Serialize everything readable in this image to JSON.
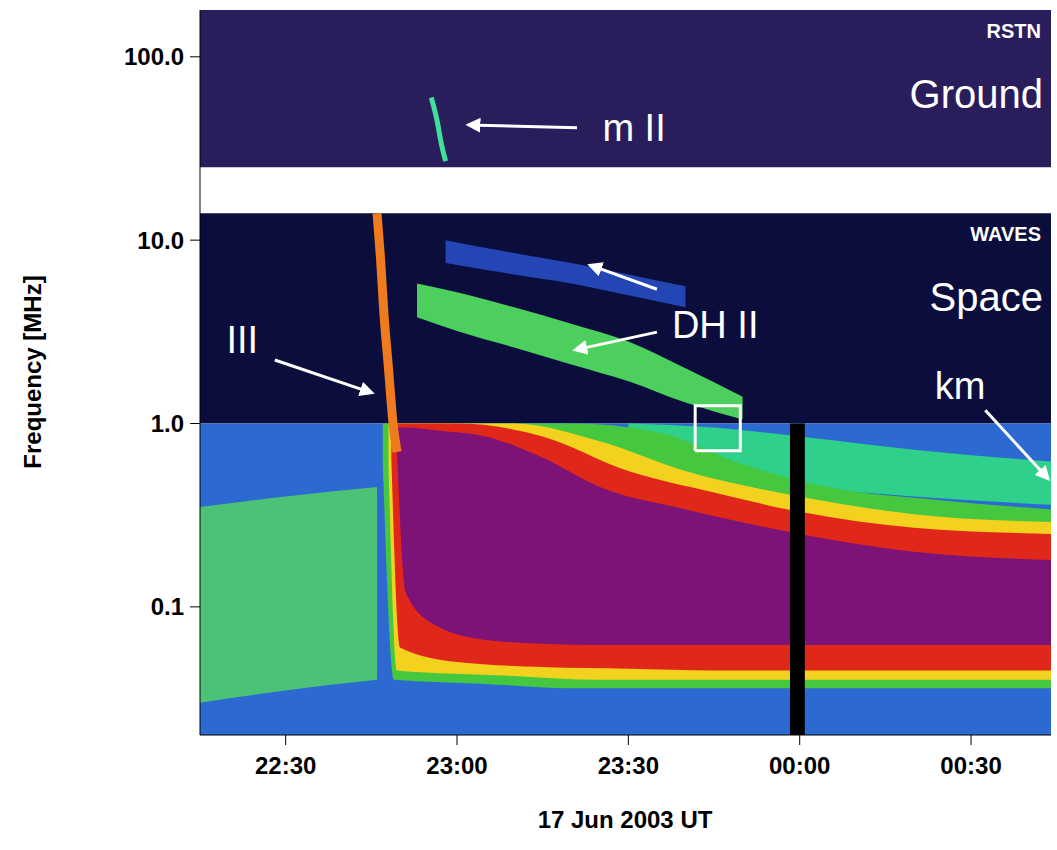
{
  "chart_data": {
    "type": "spectrogram",
    "x_label": "17 Jun 2003 UT",
    "y_label": "Frequency [MHz]",
    "log": "y",
    "grid": false,
    "xlim": [
      1335,
      1484
    ],
    "xticks": [
      {
        "value": 1350,
        "label": "22:30"
      },
      {
        "value": 1380,
        "label": "23:00"
      },
      {
        "value": 1410,
        "label": "23:30"
      },
      {
        "value": 1440,
        "label": "00:00"
      },
      {
        "value": 1470,
        "label": "00:30"
      }
    ],
    "ylim": [
      0.02,
      180
    ],
    "yticks": [
      0.1,
      {
        "value": 1,
        "label": "1.0"
      },
      {
        "value": 10,
        "label": "10.0"
      },
      {
        "value": 100,
        "label": "100.0"
      }
    ],
    "panels": [
      {
        "label": "RSTN",
        "sublabel": "Ground",
        "bands": [
          {
            "ylim": [
              25,
              180
            ],
            "color": "#2a1d5c"
          }
        ]
      },
      {
        "label": "WAVES",
        "sublabel": "Space",
        "bands": [
          {
            "ylim": [
              1,
              14
            ],
            "color": "#0b0e3c"
          },
          {
            "ylim": [
              0.02,
              1
            ],
            "color": "#2c6ad2"
          }
        ]
      }
    ],
    "series": [
      {
        "type": "range_area",
        "color": "#4cc276",
        "x": [
          1335,
          1350,
          1366
        ],
        "values": [
          [
            0.03,
            0.35
          ],
          [
            0.035,
            0.4
          ],
          [
            0.04,
            0.45
          ]
        ]
      },
      {
        "name": "km",
        "type": "range_area",
        "color": "#2fd08a",
        "x": [
          1410,
          1425,
          1440,
          1460,
          1484
        ],
        "values": [
          [
            0.6,
            1
          ],
          [
            0.5,
            0.95
          ],
          [
            0.45,
            0.85
          ],
          [
            0.4,
            0.72
          ],
          [
            0.36,
            0.62
          ]
        ]
      },
      {
        "type": "range_area",
        "color": "#45c840",
        "x": [
          1367,
          1369,
          1385,
          1400,
          1415,
          1430,
          1445,
          1465,
          1484
        ],
        "values": [
          [
            0.6,
            1
          ],
          [
            0.04,
            1
          ],
          [
            0.038,
            1
          ],
          [
            0.036,
            1
          ],
          [
            0.036,
            0.9
          ],
          [
            0.036,
            0.6
          ],
          [
            0.036,
            0.45
          ],
          [
            0.036,
            0.38
          ],
          [
            0.036,
            0.34
          ]
        ]
      },
      {
        "type": "range_area",
        "color": "#f2d21e",
        "x": [
          1368,
          1369.5,
          1390,
          1405,
          1420,
          1440,
          1460,
          1484
        ],
        "values": [
          [
            0.6,
            1
          ],
          [
            0.045,
            1
          ],
          [
            0.042,
            1
          ],
          [
            0.04,
            0.8
          ],
          [
            0.04,
            0.55
          ],
          [
            0.04,
            0.4
          ],
          [
            0.04,
            0.32
          ],
          [
            0.04,
            0.29
          ]
        ]
      },
      {
        "type": "range_area",
        "color": "#e0281a",
        "x": [
          1368.5,
          1370,
          1380,
          1395,
          1410,
          1425,
          1440,
          1460,
          1484
        ],
        "values": [
          [
            0.65,
            1
          ],
          [
            0.06,
            1
          ],
          [
            0.05,
            1
          ],
          [
            0.047,
            0.85
          ],
          [
            0.046,
            0.55
          ],
          [
            0.045,
            0.42
          ],
          [
            0.045,
            0.33
          ],
          [
            0.045,
            0.27
          ],
          [
            0.045,
            0.25
          ]
        ]
      },
      {
        "type": "range_area",
        "color": "#7d1277",
        "x": [
          1369.5,
          1371,
          1376,
          1385,
          1395,
          1405,
          1420,
          1440,
          1460,
          1484
        ],
        "values": [
          [
            0.7,
            0.95
          ],
          [
            0.12,
            0.95
          ],
          [
            0.08,
            0.92
          ],
          [
            0.066,
            0.85
          ],
          [
            0.063,
            0.65
          ],
          [
            0.062,
            0.45
          ],
          [
            0.062,
            0.34
          ],
          [
            0.062,
            0.25
          ],
          [
            0.062,
            0.2
          ],
          [
            0.062,
            0.18
          ]
        ]
      },
      {
        "name": "DH II",
        "type": "range_area",
        "color": "#4ccf5c",
        "x": [
          1373,
          1380,
          1390,
          1400,
          1410,
          1420,
          1430
        ],
        "values": [
          [
            3.8,
            5.8
          ],
          [
            3.2,
            5.2
          ],
          [
            2.6,
            4.3
          ],
          [
            2.1,
            3.5
          ],
          [
            1.7,
            2.8
          ],
          [
            1.3,
            2.0
          ],
          [
            1.05,
            1.4
          ]
        ]
      },
      {
        "name": "DH II",
        "type": "range_area",
        "color": "#2346b4",
        "x": [
          1378,
          1390,
          1400,
          1410,
          1420
        ],
        "values": [
          [
            7.5,
            10
          ],
          [
            6.5,
            8.5
          ],
          [
            5.8,
            7.5
          ],
          [
            5,
            6.5
          ],
          [
            4.3,
            5.6
          ]
        ]
      },
      {
        "name": "III",
        "type": "line",
        "color": "#f07a1e",
        "x": [
          1366,
          1366.6,
          1367.2,
          1368,
          1368.8,
          1369.5
        ],
        "values": [
          14,
          8,
          4,
          2,
          1,
          0.7
        ]
      },
      {
        "name": "m II",
        "type": "line",
        "color": "#3fe09a",
        "x": [
          1375.5,
          1376.5,
          1377.3,
          1378
        ],
        "values": [
          60,
          45,
          33,
          27
        ]
      }
    ],
    "data_gap": {
      "x": [
        1438.3,
        1440.9
      ],
      "ylim": [
        0.02,
        1
      ],
      "color": "#000000"
    },
    "highlight": {
      "x": [
        1421.7,
        1429.6
      ],
      "y": [
        0.71,
        1.25
      ],
      "color": "#ffffff"
    },
    "annotations": [
      {
        "text": "m II",
        "x": 1411,
        "y": 41,
        "arrows": [
          [
            [
              1401,
              41
            ],
            [
              1382,
              42.5
            ]
          ]
        ]
      },
      {
        "text": "DH II",
        "x": 1425.2,
        "y": 3.44,
        "arrows": [
          [
            [
              1415,
              5.4
            ],
            [
              1403.3,
              7.3
            ]
          ],
          [
            [
              1415,
              3.15
            ],
            [
              1400.7,
              2.52
            ]
          ]
        ]
      },
      {
        "text": "III",
        "x": 1342.4,
        "y": 2.85,
        "arrows": [
          [
            [
              1348.1,
              2.22
            ],
            [
              1365.1,
              1.47
            ]
          ]
        ]
      },
      {
        "text": "km",
        "x": 1468.1,
        "y": 1.61,
        "arrows": [
          [
            [
              1472.5,
              1.18
            ],
            [
              1483.5,
              0.5
            ]
          ]
        ]
      }
    ]
  }
}
